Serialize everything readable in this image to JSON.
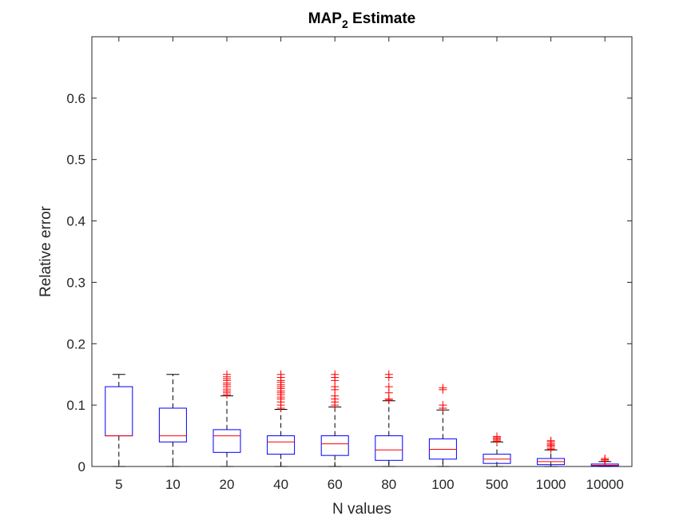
{
  "chart_data": {
    "type": "boxplot",
    "title": "MAP",
    "title_subscript": "2",
    "title_suffix": " Estimate",
    "xlabel": "N values",
    "ylabel": "Relative error",
    "ylim": [
      0,
      0.7
    ],
    "yticks": [
      0,
      0.1,
      0.2,
      0.3,
      0.4,
      0.5,
      0.6
    ],
    "ytick_labels": [
      "0",
      "0.1",
      "0.2",
      "0.3",
      "0.4",
      "0.5",
      "0.6"
    ],
    "grid": false,
    "colors": {
      "box": "#0000ff",
      "median": "#ff0000",
      "whisker": "#000000",
      "outlier": "#ff0000",
      "axes": "#262626"
    },
    "categories": [
      "5",
      "10",
      "20",
      "40",
      "60",
      "80",
      "100",
      "500",
      "1000",
      "10000"
    ],
    "boxes": [
      {
        "category": "5",
        "whisker_low": 0,
        "q1": 0.05,
        "median": 0.05,
        "q3": 0.13,
        "whisker_high": 0.15,
        "outliers": []
      },
      {
        "category": "10",
        "whisker_low": 0,
        "q1": 0.04,
        "median": 0.05,
        "q3": 0.095,
        "whisker_high": 0.15,
        "outliers": []
      },
      {
        "category": "20",
        "whisker_low": 0,
        "q1": 0.023,
        "median": 0.05,
        "q3": 0.06,
        "whisker_high": 0.115,
        "outliers": [
          0.117,
          0.12,
          0.123,
          0.126,
          0.13,
          0.133,
          0.136,
          0.14,
          0.143,
          0.146,
          0.15
        ]
      },
      {
        "category": "40",
        "whisker_low": 0,
        "q1": 0.02,
        "median": 0.04,
        "q3": 0.05,
        "whisker_high": 0.093,
        "outliers": [
          0.095,
          0.1,
          0.105,
          0.11,
          0.113,
          0.117,
          0.12,
          0.123,
          0.127,
          0.13,
          0.133,
          0.137,
          0.14,
          0.145,
          0.15
        ]
      },
      {
        "category": "60",
        "whisker_low": 0,
        "q1": 0.018,
        "median": 0.037,
        "q3": 0.05,
        "whisker_high": 0.097,
        "outliers": [
          0.1,
          0.105,
          0.11,
          0.115,
          0.125,
          0.13,
          0.14,
          0.145,
          0.15
        ]
      },
      {
        "category": "80",
        "whisker_low": 0,
        "q1": 0.01,
        "median": 0.027,
        "q3": 0.05,
        "whisker_high": 0.107,
        "outliers": [
          0.108,
          0.11,
          0.12,
          0.13,
          0.145,
          0.15
        ]
      },
      {
        "category": "100",
        "whisker_low": 0,
        "q1": 0.012,
        "median": 0.028,
        "q3": 0.045,
        "whisker_high": 0.092,
        "outliers": [
          0.095,
          0.1,
          0.125,
          0.128
        ]
      },
      {
        "category": "500",
        "whisker_low": 0,
        "q1": 0.005,
        "median": 0.012,
        "q3": 0.02,
        "whisker_high": 0.04,
        "outliers": [
          0.041,
          0.043,
          0.045,
          0.047,
          0.049
        ]
      },
      {
        "category": "1000",
        "whisker_low": 0,
        "q1": 0.003,
        "median": 0.008,
        "q3": 0.013,
        "whisker_high": 0.027,
        "outliers": [
          0.028,
          0.03,
          0.033,
          0.035,
          0.037,
          0.04,
          0.042
        ]
      },
      {
        "category": "10000",
        "whisker_low": 0,
        "q1": 0.001,
        "median": 0.002,
        "q3": 0.004,
        "whisker_high": 0.008,
        "outliers": [
          0.009,
          0.011,
          0.013
        ]
      }
    ]
  }
}
